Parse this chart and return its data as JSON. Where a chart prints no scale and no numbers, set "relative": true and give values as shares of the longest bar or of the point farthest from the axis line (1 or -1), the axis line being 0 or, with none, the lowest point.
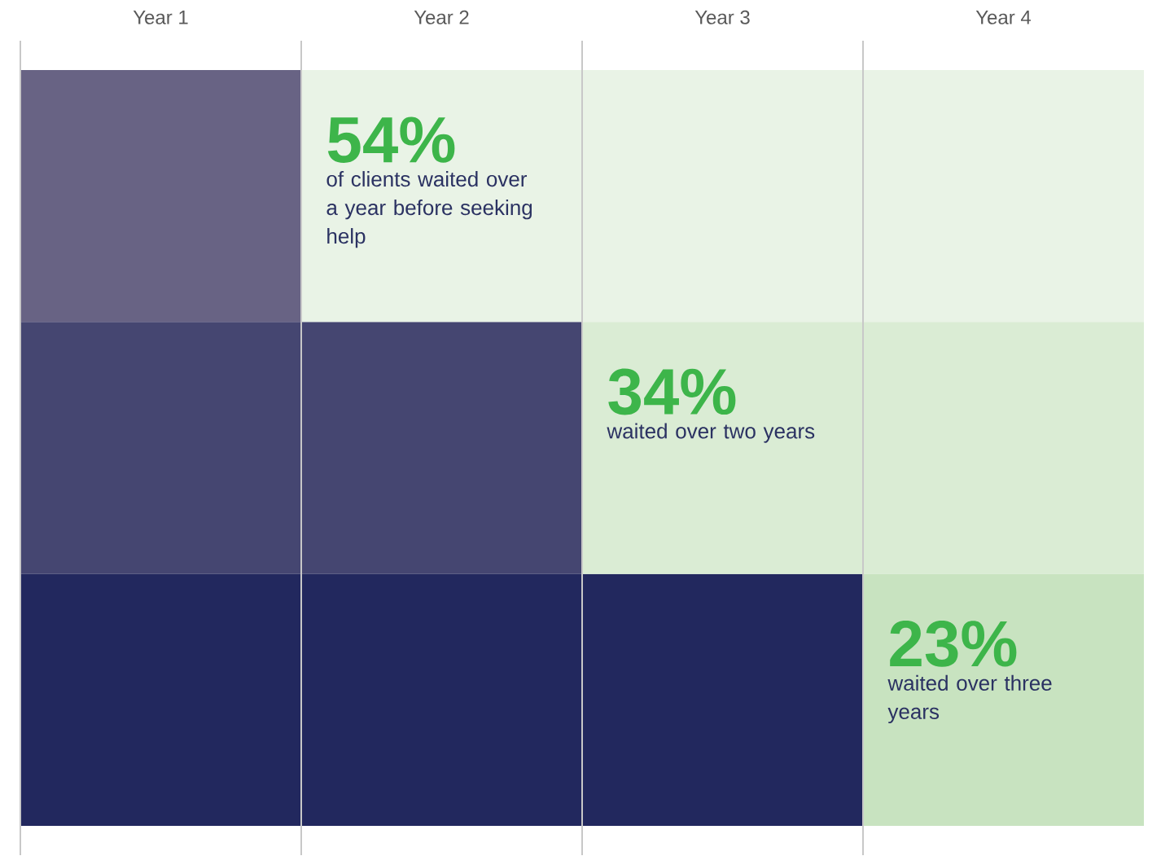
{
  "chart_data": {
    "type": "bar",
    "orientation": "horizontal",
    "stacked": true,
    "relative": true,
    "categories": [
      null,
      null,
      null
    ],
    "series": [
      {
        "colors": [
          "#686384",
          "#454671",
          "#22285e"
        ],
        "values": [
          0.25,
          0.5,
          0.75
        ]
      },
      {
        "colors": [
          "#e9f3e6",
          "#daecd4",
          "#c8e3c0"
        ],
        "values": [
          0.75,
          0.5,
          0.25
        ]
      }
    ],
    "grid": "x",
    "annotations": [
      "Year 1",
      "Year 2",
      "Year 3",
      "Year 4",
      "54%",
      "of clients waited over a year before seeking help",
      "34%",
      "waited over two years",
      "23%",
      "waited over three years"
    ]
  }
}
